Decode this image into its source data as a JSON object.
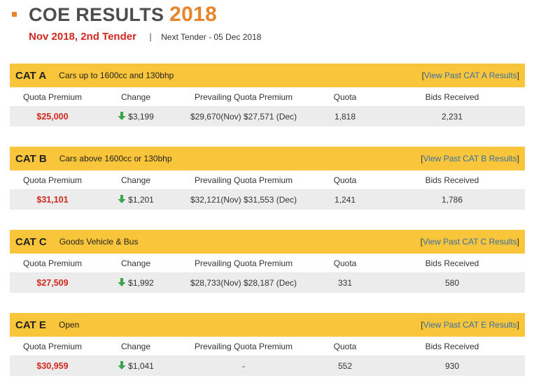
{
  "header": {
    "title": "COE RESULTS",
    "year": "2018",
    "tender": "Nov 2018, 2nd Tender",
    "separator": "|",
    "next_tender": "Next Tender - 05 Dec 2018"
  },
  "columns": [
    "Quota Premium",
    "Change",
    "Prevailing Quota Premium",
    "Quota",
    "Bids Received"
  ],
  "colors": {
    "accent": "#e8852a",
    "header_bar": "#f9c53a",
    "premium_red": "#d0281f",
    "down_green": "#3aa54a",
    "link_blue": "#3a6fa7"
  },
  "categories": [
    {
      "name": "CAT A",
      "description": "Cars up to 1600cc and 130bhp",
      "link_open": "[",
      "link_text": "View Past CAT A Results",
      "link_close": "]",
      "quota_premium": "$25,000",
      "change": "$3,199",
      "change_direction": "down",
      "prevailing": "$29,670(Nov)   $27,571 (Dec)",
      "quota": "1,818",
      "bids": "2,231"
    },
    {
      "name": "CAT B",
      "description": "Cars above 1600cc or 130bhp",
      "link_open": "[",
      "link_text": "View Past CAT B Results",
      "link_close": "]",
      "quota_premium": "$31,101",
      "change": "$1,201",
      "change_direction": "down",
      "prevailing": "$32,121(Nov)   $31,553 (Dec)",
      "quota": "1,241",
      "bids": "1,786"
    },
    {
      "name": "CAT C",
      "description": "Goods Vehicle & Bus",
      "link_open": "[",
      "link_text": "View Past CAT C Results",
      "link_close": "]",
      "quota_premium": "$27,509",
      "change": "$1,992",
      "change_direction": "down",
      "prevailing": "$28,733(Nov)   $28,187 (Dec)",
      "quota": "331",
      "bids": "580"
    },
    {
      "name": "CAT E",
      "description": "Open",
      "link_open": "[",
      "link_text": "View Past CAT E Results",
      "link_close": "]",
      "quota_premium": "$30,959",
      "change": "$1,041",
      "change_direction": "down",
      "prevailing": "-",
      "quota": "552",
      "bids": "930"
    }
  ]
}
